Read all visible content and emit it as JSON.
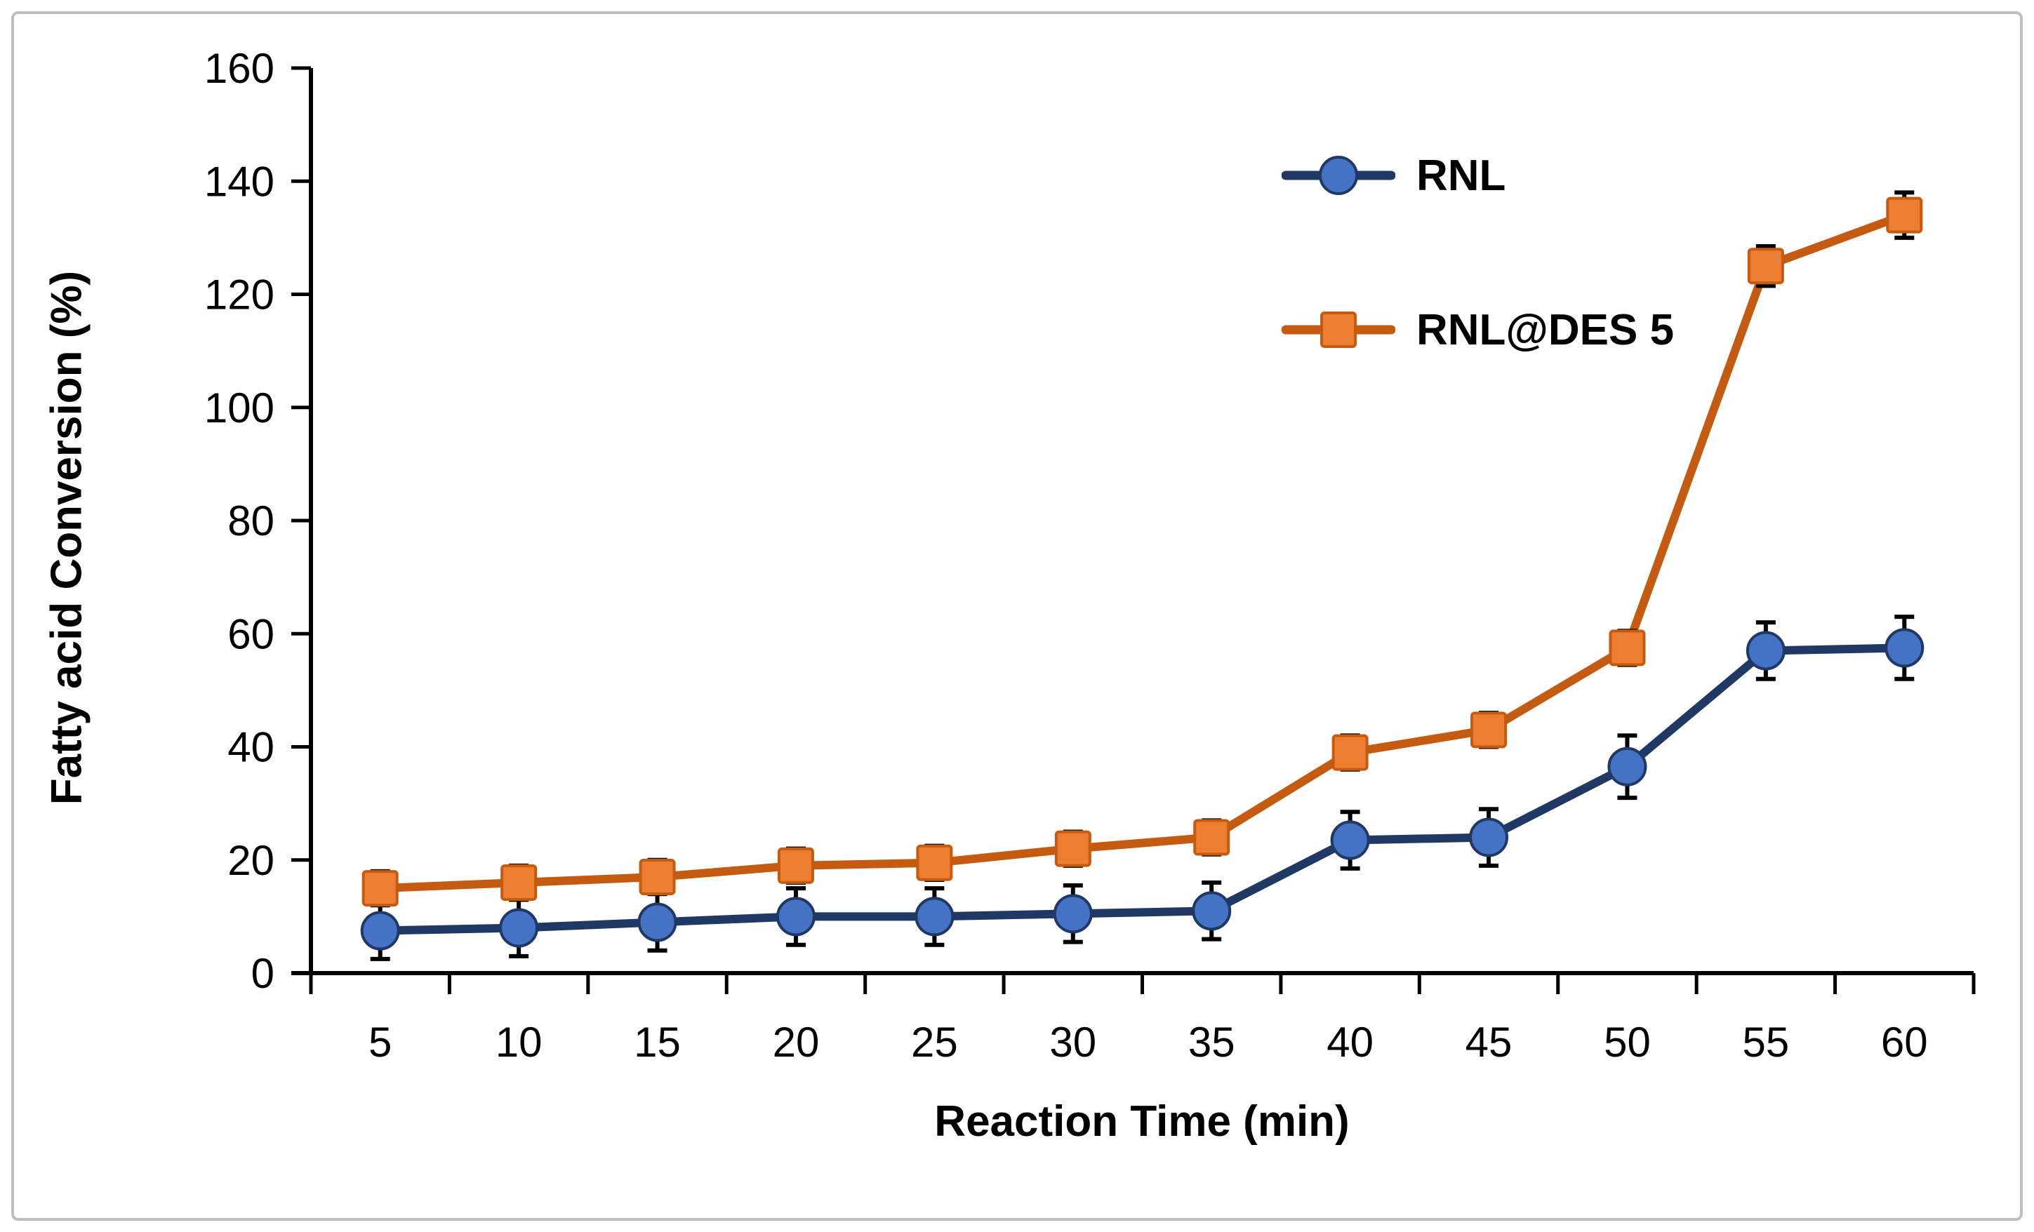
{
  "figure": {
    "background_color": "#FFFFFF",
    "border_color": "#BFBFBF"
  },
  "chart_data": {
    "type": "line",
    "title": "",
    "xlabel": "Reaction Time (min)",
    "ylabel": "Fatty acid Conversion (%)",
    "categories": [
      5,
      10,
      15,
      20,
      25,
      30,
      35,
      40,
      45,
      50,
      55,
      60
    ],
    "ylim": [
      0,
      160
    ],
    "ytick_step": 20,
    "grid": false,
    "legend_position": "upper-right-inside",
    "axis_color": "#000000",
    "error_bar_color": "#000000",
    "series": [
      {
        "name": "RNL",
        "marker": "circle",
        "marker_fill": "#4472C4",
        "marker_edge": "#1F3864",
        "line_color": "#1F3864",
        "values": [
          7.5,
          8,
          9,
          10,
          10,
          10.5,
          11,
          23.5,
          24,
          36.5,
          57,
          57.5
        ],
        "errors": [
          5,
          5,
          5,
          5,
          5,
          5,
          5,
          5,
          5,
          5.5,
          5,
          5.5
        ]
      },
      {
        "name": "RNL@DES 5",
        "marker": "square",
        "marker_fill": "#ED7D31",
        "marker_edge": "#C55A11",
        "line_color": "#C55A11",
        "values": [
          15,
          16,
          17,
          19,
          19.5,
          22,
          24,
          39,
          43,
          57.5,
          125,
          134
        ],
        "errors": [
          3,
          3,
          3,
          3,
          3,
          3,
          3,
          3,
          3,
          3,
          3.5,
          4
        ]
      }
    ]
  }
}
